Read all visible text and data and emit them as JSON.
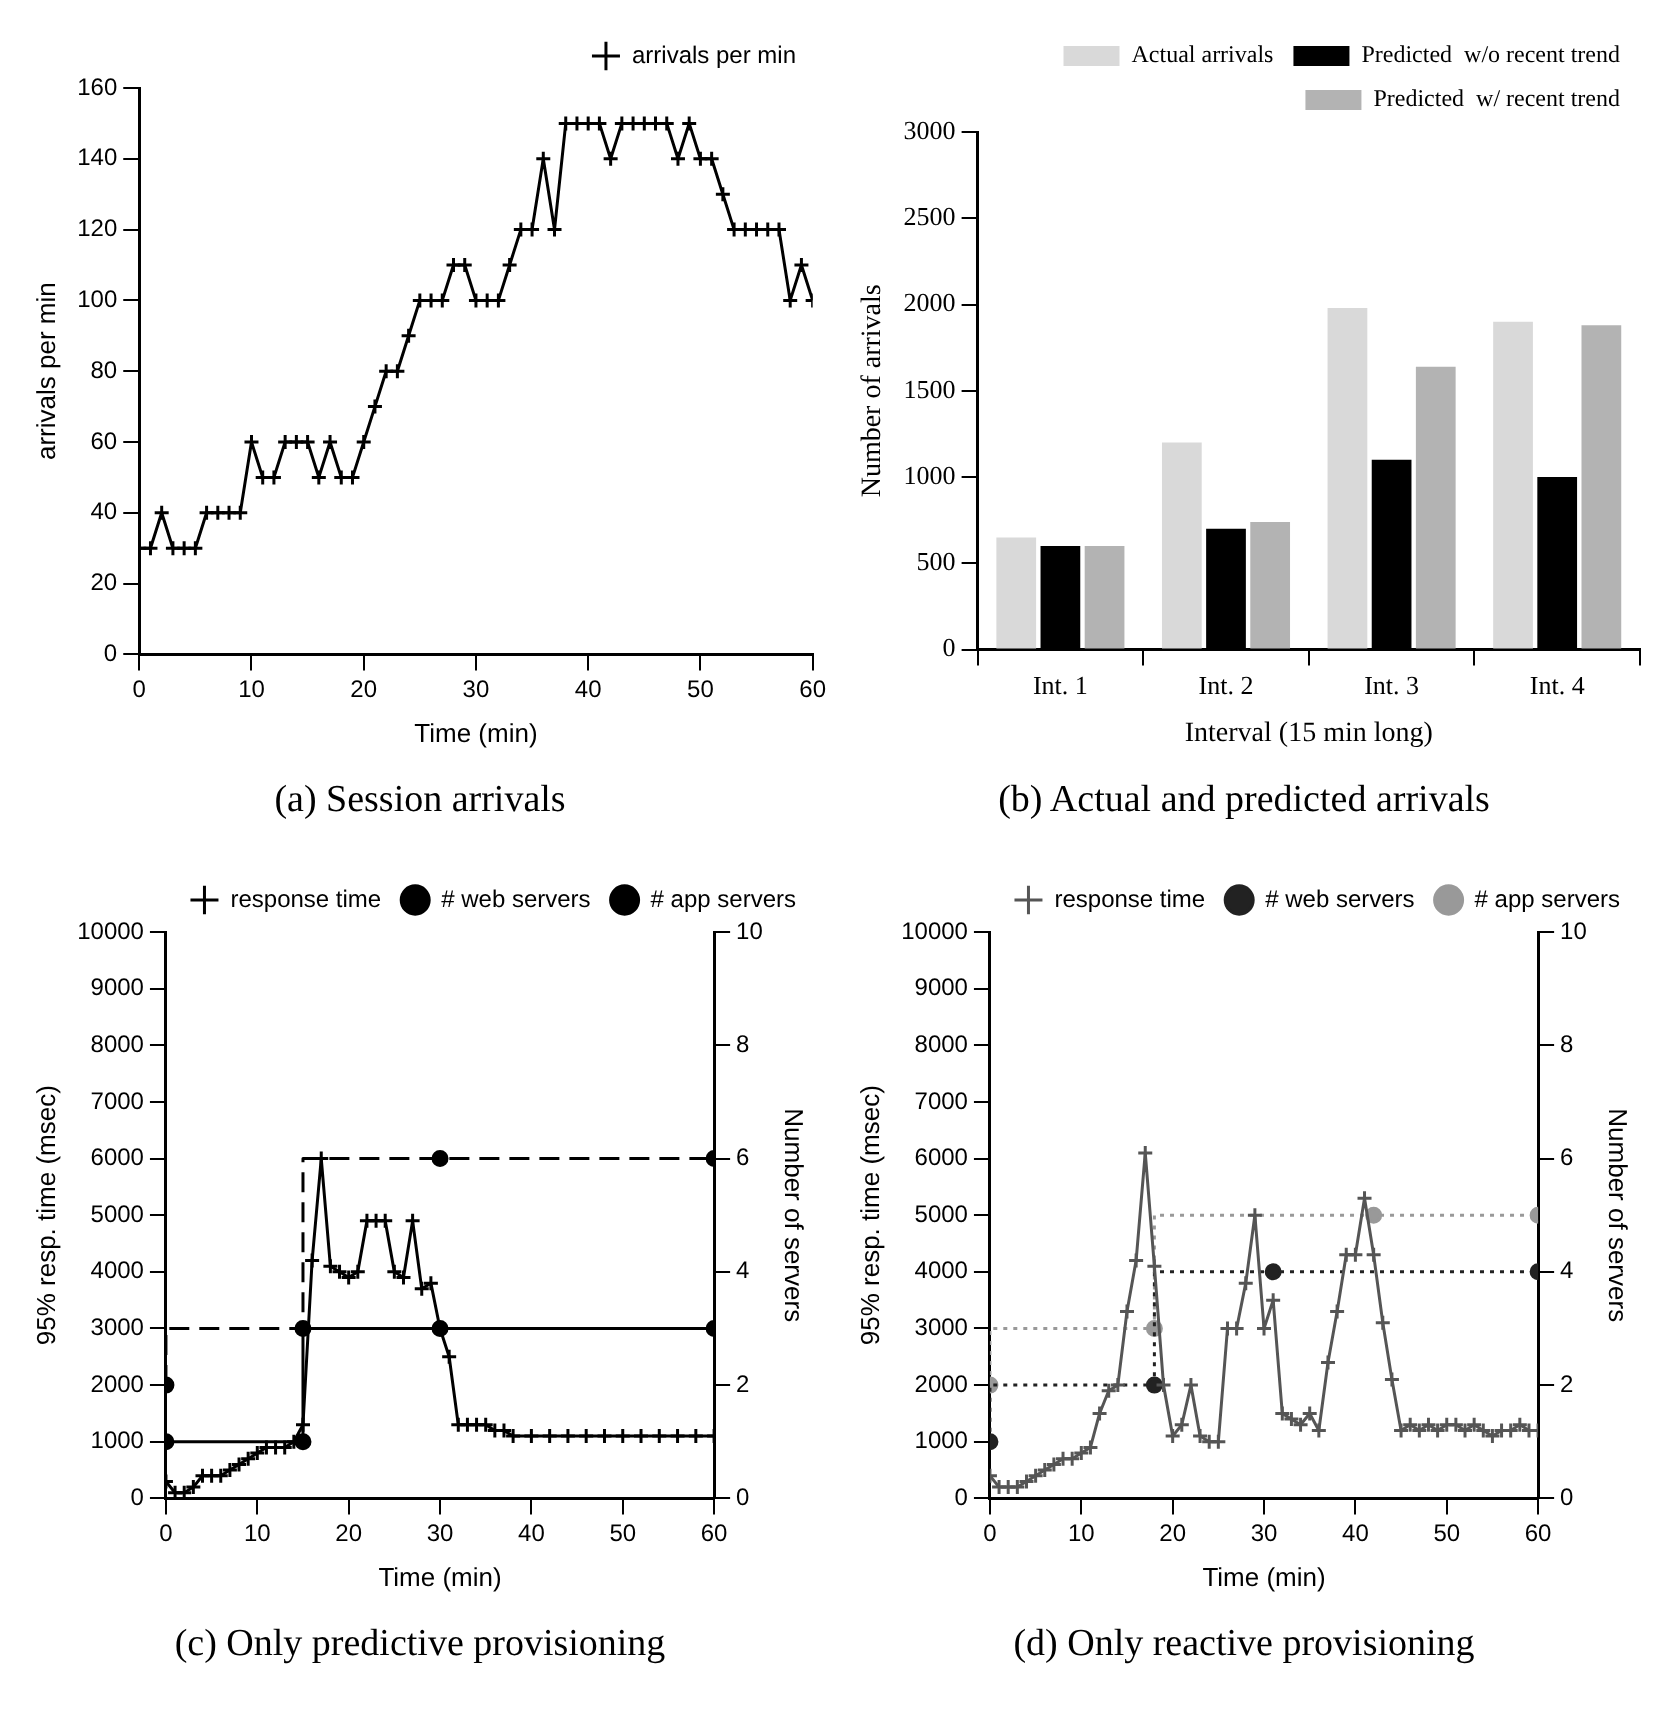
{
  "chart_data": [
    {
      "type": "line",
      "title": "(a) Session arrivals",
      "xlabel": "Time (min)",
      "ylabel": "arrivals per min",
      "xlim": [
        0,
        60
      ],
      "xticks": [
        0,
        10,
        20,
        30,
        40,
        50,
        60
      ],
      "ylim": [
        0,
        160
      ],
      "yticks": [
        0,
        20,
        40,
        60,
        80,
        100,
        120,
        140,
        160
      ],
      "grid": false,
      "legend": "top right",
      "marker": "cross",
      "line_style": "solid",
      "x": [
        0,
        1,
        2,
        3,
        4,
        5,
        6,
        7,
        8,
        9,
        10,
        11,
        12,
        13,
        14,
        15,
        16,
        17,
        18,
        19,
        20,
        21,
        22,
        23,
        24,
        25,
        26,
        27,
        28,
        29,
        30,
        31,
        32,
        33,
        34,
        35,
        36,
        37,
        38,
        39,
        40,
        41,
        42,
        43,
        44,
        45,
        46,
        47,
        48,
        49,
        50,
        51,
        52,
        53,
        54,
        55,
        56,
        57,
        58,
        59,
        60
      ],
      "series": [
        {
          "name": "arrivals per min",
          "color": "#000000",
          "values": [
            30,
            30,
            40,
            30,
            30,
            30,
            40,
            40,
            40,
            40,
            60,
            50,
            50,
            60,
            60,
            60,
            50,
            60,
            50,
            50,
            60,
            70,
            80,
            80,
            90,
            100,
            100,
            100,
            110,
            110,
            100,
            100,
            100,
            110,
            120,
            120,
            140,
            120,
            150,
            150,
            150,
            150,
            140,
            150,
            150,
            150,
            150,
            150,
            140,
            150,
            140,
            140,
            130,
            120,
            120,
            120,
            120,
            120,
            100,
            110,
            100
          ]
        }
      ]
    },
    {
      "type": "bar",
      "title": "(b) Actual and predicted arrivals",
      "xlabel": "Interval (15 min long)",
      "ylabel": "Number of arrivals",
      "categories": [
        "Int. 1",
        "Int. 2",
        "Int. 3",
        "Int. 4"
      ],
      "ylim": [
        0,
        3000
      ],
      "yticks": [
        0,
        500,
        1000,
        1500,
        2000,
        2500,
        3000
      ],
      "grid": false,
      "legend": "top right",
      "series": [
        {
          "name": "Actual arrivals",
          "color": "#d9d9d9",
          "values": [
            650,
            1200,
            1980,
            1900
          ]
        },
        {
          "name": "Predicted  w/o recent trend",
          "color": "#000000",
          "values": [
            600,
            700,
            1100,
            1000
          ]
        },
        {
          "name": "Predicted  w/ recent trend",
          "color": "#b3b3b3",
          "values": [
            600,
            740,
            1640,
            1880
          ]
        }
      ]
    },
    {
      "type": "line",
      "title": "(c) Only predictive provisioning",
      "xlabel": "Time (min)",
      "ylabel": "95% resp. time (msec)",
      "y2label": "Number of servers",
      "xlim": [
        0,
        60
      ],
      "xticks": [
        0,
        10,
        20,
        30,
        40,
        50,
        60
      ],
      "ylim": [
        0,
        10000
      ],
      "yticks": [
        0,
        1000,
        2000,
        3000,
        4000,
        5000,
        6000,
        7000,
        8000,
        9000,
        10000
      ],
      "y2lim": [
        0,
        10
      ],
      "y2ticks": [
        0,
        2,
        4,
        6,
        8,
        10
      ],
      "grid": false,
      "legend": "top right",
      "series": [
        {
          "name": "response time",
          "color": "#000000",
          "marker": "cross",
          "line_style": "solid",
          "x": [
            0,
            1,
            2,
            3,
            4,
            5,
            6,
            7,
            8,
            9,
            10,
            11,
            12,
            13,
            14,
            15,
            16,
            17,
            18,
            19,
            20,
            21,
            22,
            23,
            24,
            25,
            26,
            27,
            28,
            29,
            30,
            31,
            32,
            33,
            34,
            35,
            36,
            37,
            38,
            40,
            42,
            44,
            46,
            48,
            50,
            52,
            54,
            56,
            58,
            60
          ],
          "values": [
            300,
            100,
            100,
            200,
            400,
            400,
            400,
            500,
            600,
            700,
            800,
            900,
            900,
            900,
            1000,
            1300,
            4200,
            6000,
            4100,
            4000,
            3900,
            4000,
            4900,
            4900,
            4900,
            4000,
            3900,
            4900,
            3700,
            3800,
            3000,
            2500,
            1300,
            1300,
            1300,
            1300,
            1200,
            1200,
            1100,
            1100,
            1100,
            1100,
            1100,
            1100,
            1100,
            1100,
            1100,
            1100,
            1100,
            1100
          ]
        },
        {
          "name": "# web servers",
          "type": "step",
          "axis": "y2",
          "color": "#000000",
          "marker": "circle",
          "line_style": "solid",
          "x": [
            0,
            15,
            30,
            60
          ],
          "values": [
            1,
            1,
            3,
            3
          ]
        },
        {
          "name": "# app servers",
          "type": "step",
          "axis": "y2",
          "color": "#000000",
          "marker": "circle",
          "line_style": "dashed",
          "x": [
            0,
            15,
            30,
            60
          ],
          "values": [
            2,
            3,
            6,
            6
          ]
        }
      ]
    },
    {
      "type": "line",
      "title": "(d) Only reactive provisioning",
      "xlabel": "Time (min)",
      "ylabel": "95% resp. time (msec)",
      "y2label": "Number of servers",
      "xlim": [
        0,
        60
      ],
      "xticks": [
        0,
        10,
        20,
        30,
        40,
        50,
        60
      ],
      "ylim": [
        0,
        10000
      ],
      "yticks": [
        0,
        1000,
        2000,
        3000,
        4000,
        5000,
        6000,
        7000,
        8000,
        9000,
        10000
      ],
      "y2lim": [
        0,
        10
      ],
      "y2ticks": [
        0,
        2,
        4,
        6,
        8,
        10
      ],
      "grid": false,
      "legend": "top right",
      "series": [
        {
          "name": "response time",
          "color": "#555555",
          "marker": "cross",
          "line_style": "solid",
          "x": [
            0,
            1,
            2,
            3,
            4,
            5,
            6,
            7,
            8,
            9,
            10,
            11,
            12,
            13,
            14,
            15,
            16,
            17,
            18,
            19,
            20,
            21,
            22,
            23,
            24,
            25,
            26,
            27,
            28,
            29,
            30,
            31,
            32,
            33,
            34,
            35,
            36,
            37,
            38,
            39,
            40,
            41,
            42,
            43,
            44,
            45,
            46,
            47,
            48,
            49,
            50,
            51,
            52,
            53,
            54,
            55,
            56,
            57,
            58,
            59,
            60
          ],
          "values": [
            400,
            200,
            200,
            200,
            300,
            400,
            500,
            600,
            700,
            700,
            800,
            900,
            1500,
            1900,
            2000,
            3300,
            4200,
            6100,
            4100,
            2000,
            1100,
            1300,
            2000,
            1100,
            1000,
            1000,
            3000,
            3000,
            3800,
            5000,
            3000,
            3500,
            1500,
            1400,
            1300,
            1500,
            1200,
            2400,
            3300,
            4300,
            4300,
            5300,
            4300,
            3100,
            2100,
            1200,
            1300,
            1200,
            1300,
            1200,
            1300,
            1300,
            1200,
            1300,
            1200,
            1100,
            1200,
            1200,
            1300,
            1200,
            1200
          ]
        },
        {
          "name": "# web servers",
          "type": "step",
          "axis": "y2",
          "color": "#222222",
          "marker": "circle",
          "line_style": "dotted",
          "x": [
            0,
            18,
            31,
            60
          ],
          "values": [
            1,
            2,
            4,
            4
          ]
        },
        {
          "name": "# app servers",
          "type": "step",
          "axis": "y2",
          "color": "#999999",
          "marker": "circle",
          "line_style": "dotted",
          "x": [
            0,
            18,
            42,
            60
          ],
          "values": [
            2,
            3,
            5,
            5
          ]
        }
      ]
    }
  ]
}
